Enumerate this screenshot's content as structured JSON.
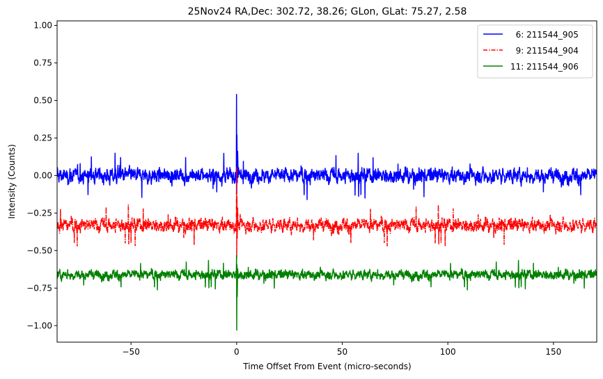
{
  "chart_data": {
    "type": "line",
    "title": "25Nov24 RA,Dec:  302.72,  38.26; GLon, GLat:   75.27,   2.58",
    "xlabel": "Time Offset From Event (micro-seconds)",
    "ylabel": "Intensity (Counts)",
    "xlim": [
      -85,
      170.5
    ],
    "ylim": [
      -1.11,
      1.03
    ],
    "xticks": [
      -50,
      0,
      50,
      100,
      150
    ],
    "xtick_labels": [
      "−50",
      "0",
      "50",
      "100",
      "150"
    ],
    "yticks": [
      1.0,
      0.75,
      0.5,
      0.25,
      0.0,
      -0.25,
      -0.5,
      -0.75,
      -1.0
    ],
    "ytick_labels": [
      "1.00",
      "0.75",
      "0.50",
      "0.25",
      "0.00",
      "−0.25",
      "−0.50",
      "−0.75",
      "−1.00"
    ],
    "grid": false,
    "legend_position": "upper right",
    "series": [
      {
        "name": "6: 211544_905",
        "legend_label": "  6: 211544_905",
        "color": "#0000ff",
        "linestyle": "solid",
        "baseline": 0.0,
        "noise_std": 0.055,
        "noise_range": [
          -0.2,
          0.2
        ],
        "event_spike": {
          "x": 0.0,
          "peak": 0.54,
          "min": -0.12
        }
      },
      {
        "name": "9: 211544_904",
        "legend_label": "  9: 211544_904",
        "color": "#ff0000",
        "linestyle": "dashdot",
        "baseline": -0.33,
        "noise_std": 0.05,
        "noise_range": [
          -0.47,
          -0.16
        ],
        "event_spike": {
          "x": 0.0,
          "peak": 0.05,
          "min": -0.55
        }
      },
      {
        "name": "11: 211544_906",
        "legend_label": "11: 211544_906",
        "color": "#008000",
        "linestyle": "solid",
        "baseline": -0.66,
        "noise_std": 0.035,
        "noise_range": [
          -0.79,
          -0.53
        ],
        "event_spike": {
          "x": 0.0,
          "peak": -0.53,
          "min": -1.03
        }
      }
    ]
  },
  "legend": {
    "items": [
      {
        "label": "  6: 211544_905",
        "color": "#0000ff",
        "dash": ""
      },
      {
        "label": "  9: 211544_904",
        "color": "#ff0000",
        "dash": "6,2,1.5,2"
      },
      {
        "label": "11: 211544_906",
        "color": "#008000",
        "dash": ""
      }
    ]
  }
}
